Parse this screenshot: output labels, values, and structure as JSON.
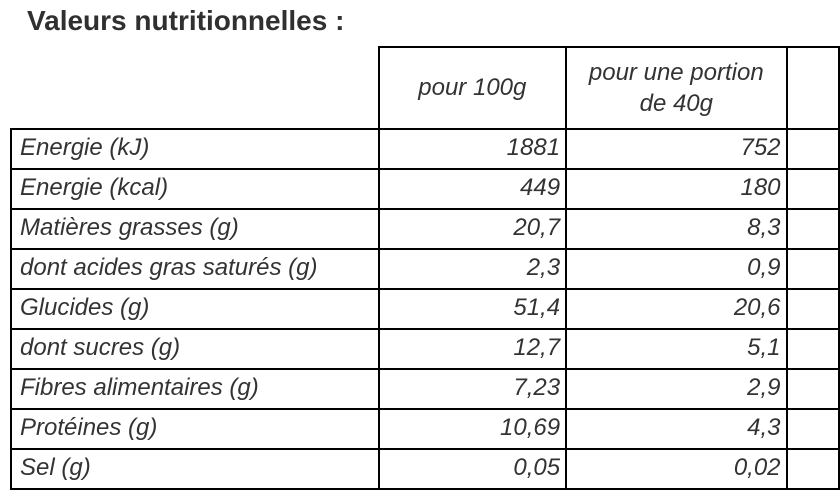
{
  "title": "Valeurs nutritionnelles :",
  "table": {
    "headers": {
      "per_100g": "pour 100g",
      "per_portion": "pour une portion de 40g"
    },
    "rows": [
      {
        "label": "Energie (kJ)",
        "per_100g": "1881",
        "per_portion": "752"
      },
      {
        "label": "Energie (kcal)",
        "per_100g": "449",
        "per_portion": "180"
      },
      {
        "label": "Matières grasses (g)",
        "per_100g": "20,7",
        "per_portion": "8,3"
      },
      {
        "label": "dont acides gras saturés (g)",
        "per_100g": "2,3",
        "per_portion": "0,9"
      },
      {
        "label": "Glucides (g)",
        "per_100g": "51,4",
        "per_portion": "20,6"
      },
      {
        "label": "dont sucres (g)",
        "per_100g": "12,7",
        "per_portion": "5,1"
      },
      {
        "label": "Fibres alimentaires (g)",
        "per_100g": "7,23",
        "per_portion": "2,9"
      },
      {
        "label": "Protéines (g)",
        "per_100g": "10,69",
        "per_portion": "4,3"
      },
      {
        "label": "Sel (g)",
        "per_100g": "0,05",
        "per_portion": "0,02"
      }
    ]
  },
  "colors": {
    "background": "#ffffff",
    "text": "#333333",
    "title_text": "#303030",
    "border": "#000000"
  }
}
